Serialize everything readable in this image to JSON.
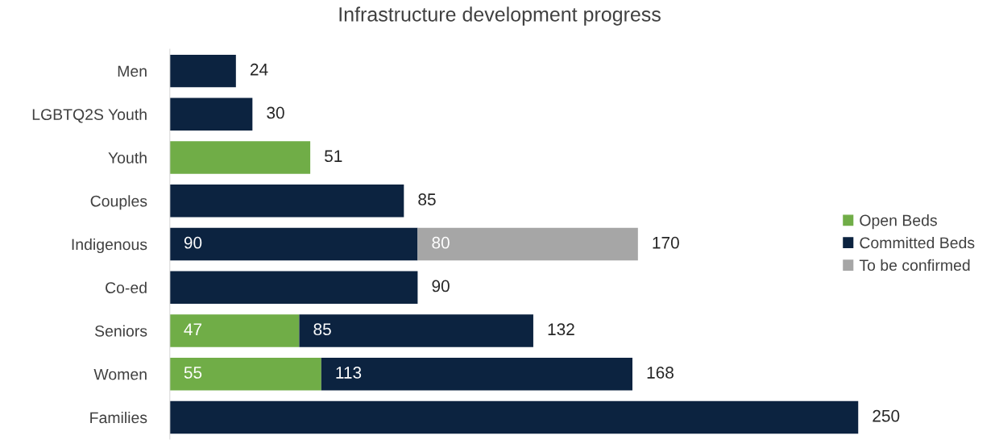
{
  "chart_data": {
    "type": "bar",
    "orientation": "horizontal",
    "stacked": true,
    "title": "Infrastructure development progress",
    "categories": [
      "Men",
      "LGBTQ2S Youth",
      "Youth",
      "Couples",
      "Indigenous",
      "Co-ed",
      "Seniors",
      "Women",
      "Families"
    ],
    "series": [
      {
        "name": "Open Beds",
        "color": "#70ad47",
        "values": [
          null,
          null,
          51,
          null,
          null,
          null,
          47,
          55,
          null
        ],
        "value_labels": [
          null,
          null,
          null,
          null,
          null,
          null,
          "47",
          "55",
          null
        ]
      },
      {
        "name": "Committed Beds",
        "color": "#0c2340",
        "values": [
          24,
          30,
          null,
          85,
          90,
          90,
          85,
          113,
          250
        ],
        "value_labels": [
          null,
          null,
          null,
          null,
          "90",
          null,
          "85",
          "113",
          null
        ]
      },
      {
        "name": "To be confirmed",
        "color": "#a6a6a6",
        "values": [
          null,
          null,
          null,
          null,
          80,
          null,
          null,
          null,
          null
        ],
        "value_labels": [
          null,
          null,
          null,
          null,
          "80",
          null,
          null,
          null,
          null
        ]
      }
    ],
    "totals": [
      "24",
      "30",
      "51",
      "85",
      "170",
      "90",
      "132",
      "168",
      "250"
    ],
    "legend": "right",
    "grid": false,
    "tick_labels": "y"
  }
}
